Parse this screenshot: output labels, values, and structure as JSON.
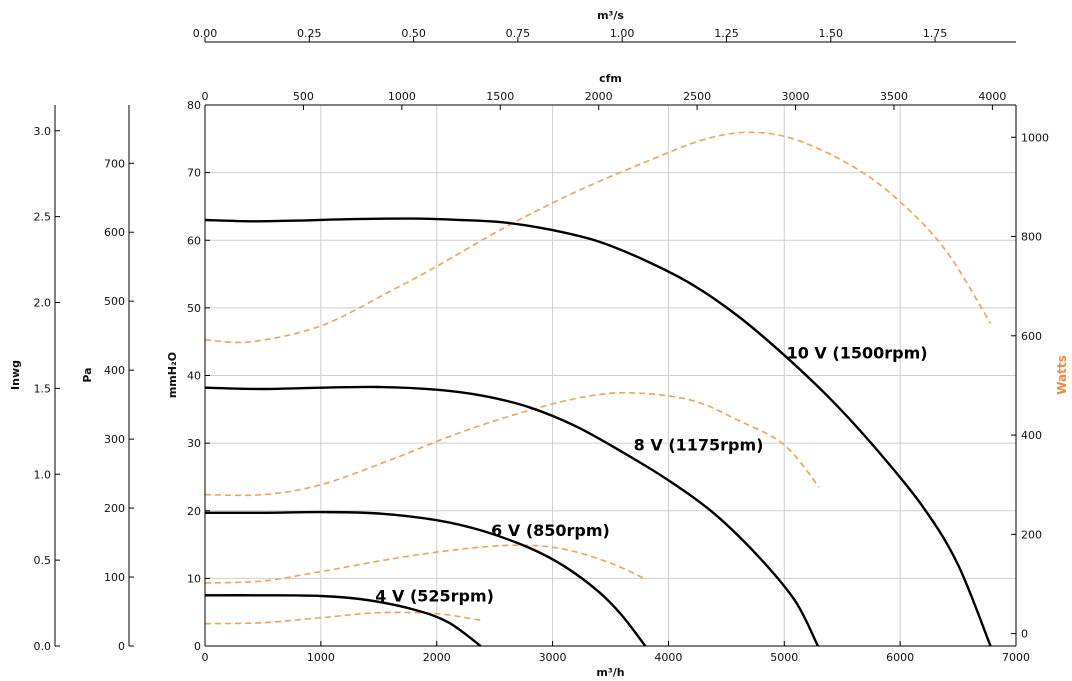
{
  "chart_data": {
    "type": "line",
    "colors": {
      "pressure": "#000000",
      "power": "#f5a05a",
      "power_axis_label": "#f08a3c",
      "grid": "#cfcfcf"
    },
    "axes": {
      "x_bottom": {
        "label": "m³/h",
        "range": [
          0,
          7000
        ],
        "ticks": [
          "0",
          "1000",
          "2000",
          "3000",
          "4000",
          "5000",
          "6000",
          "7000"
        ]
      },
      "x_cfm": {
        "label": "cfm",
        "range": [
          0,
          4120
        ],
        "ticks": [
          "0",
          "500",
          "1000",
          "1500",
          "2000",
          "2500",
          "3000",
          "3500",
          "4000"
        ]
      },
      "x_m3s": {
        "label": "m³/s",
        "range": [
          0,
          1.944
        ],
        "ticks": [
          "0.00",
          "0.25",
          "0.50",
          "0.75",
          "1.00",
          "1.25",
          "1.50",
          "1.75"
        ]
      },
      "y_mmh2o": {
        "label": "mmH₂O",
        "range": [
          0,
          80
        ],
        "ticks": [
          "0",
          "10",
          "20",
          "30",
          "40",
          "50",
          "60",
          "70",
          "80"
        ]
      },
      "y_pa": {
        "label": "Pa",
        "range": [
          0,
          784.5
        ],
        "ticks": [
          "0",
          "100",
          "200",
          "300",
          "400",
          "500",
          "600",
          "700"
        ]
      },
      "y_inwg": {
        "label": "Inwg",
        "range": [
          0,
          3.15
        ],
        "ticks": [
          "0.0",
          "0.5",
          "1.0",
          "1.5",
          "2.0",
          "2.5",
          "3.0"
        ]
      },
      "y_watts": {
        "label": "Watts",
        "range": [
          -25,
          1065
        ],
        "ticks": [
          "0",
          "200",
          "400",
          "600",
          "800",
          "1000"
        ]
      }
    },
    "grid": true,
    "pressure_series": [
      {
        "name": "10 V (1500rpm)",
        "label_at": [
          5020,
          42.5
        ],
        "points": [
          [
            0,
            63
          ],
          [
            400,
            62.8
          ],
          [
            800,
            62.9
          ],
          [
            1200,
            63.1
          ],
          [
            1800,
            63.2
          ],
          [
            2200,
            63.0
          ],
          [
            2600,
            62.6
          ],
          [
            3000,
            61.5
          ],
          [
            3400,
            59.8
          ],
          [
            3800,
            57.0
          ],
          [
            4200,
            53.5
          ],
          [
            4600,
            48.8
          ],
          [
            5000,
            43.0
          ],
          [
            5400,
            36.5
          ],
          [
            5800,
            29.0
          ],
          [
            6200,
            20.5
          ],
          [
            6500,
            12.0
          ],
          [
            6780,
            0
          ]
        ]
      },
      {
        "name": "8 V (1175rpm)",
        "label_at": [
          3700,
          28.9
        ],
        "points": [
          [
            0,
            38.2
          ],
          [
            500,
            38.0
          ],
          [
            1000,
            38.2
          ],
          [
            1500,
            38.3
          ],
          [
            2000,
            37.9
          ],
          [
            2400,
            37.0
          ],
          [
            2800,
            35.3
          ],
          [
            3200,
            32.5
          ],
          [
            3600,
            28.7
          ],
          [
            4000,
            24.5
          ],
          [
            4400,
            19.5
          ],
          [
            4800,
            12.8
          ],
          [
            5100,
            6.5
          ],
          [
            5290,
            0
          ]
        ]
      },
      {
        "name": "6 V (850rpm)",
        "label_at": [
          2470,
          16.3
        ],
        "points": [
          [
            0,
            19.7
          ],
          [
            500,
            19.7
          ],
          [
            1000,
            19.8
          ],
          [
            1500,
            19.6
          ],
          [
            2000,
            18.6
          ],
          [
            2400,
            17.0
          ],
          [
            2800,
            14.5
          ],
          [
            3100,
            11.8
          ],
          [
            3400,
            8.0
          ],
          [
            3600,
            4.5
          ],
          [
            3800,
            0
          ]
        ]
      },
      {
        "name": "4 V (525rpm)",
        "label_at": [
          1470,
          6.6
        ],
        "points": [
          [
            0,
            7.5
          ],
          [
            500,
            7.5
          ],
          [
            1000,
            7.4
          ],
          [
            1400,
            6.8
          ],
          [
            1800,
            5.4
          ],
          [
            2100,
            3.5
          ],
          [
            2380,
            0
          ]
        ]
      }
    ],
    "power_series": [
      {
        "points": [
          [
            0,
            592
          ],
          [
            400,
            588
          ],
          [
            1000,
            620
          ],
          [
            1600,
            690
          ],
          [
            2000,
            740
          ],
          [
            2600,
            820
          ],
          [
            3200,
            890
          ],
          [
            3800,
            950
          ],
          [
            4300,
            995
          ],
          [
            4700,
            1010
          ],
          [
            5100,
            995
          ],
          [
            5600,
            940
          ],
          [
            6000,
            870
          ],
          [
            6400,
            770
          ],
          [
            6780,
            625
          ]
        ]
      },
      {
        "points": [
          [
            0,
            280
          ],
          [
            500,
            280
          ],
          [
            1000,
            300
          ],
          [
            1600,
            350
          ],
          [
            2200,
            405
          ],
          [
            2800,
            450
          ],
          [
            3300,
            478
          ],
          [
            3700,
            485
          ],
          [
            4200,
            470
          ],
          [
            4600,
            430
          ],
          [
            5000,
            380
          ],
          [
            5300,
            295
          ]
        ]
      },
      {
        "points": [
          [
            0,
            102
          ],
          [
            500,
            106
          ],
          [
            1000,
            125
          ],
          [
            1600,
            150
          ],
          [
            2200,
            170
          ],
          [
            2700,
            178
          ],
          [
            3100,
            170
          ],
          [
            3500,
            142
          ],
          [
            3800,
            110
          ]
        ]
      },
      {
        "points": [
          [
            0,
            20
          ],
          [
            500,
            22
          ],
          [
            1000,
            32
          ],
          [
            1500,
            42
          ],
          [
            2000,
            40
          ],
          [
            2400,
            26
          ]
        ]
      }
    ]
  }
}
